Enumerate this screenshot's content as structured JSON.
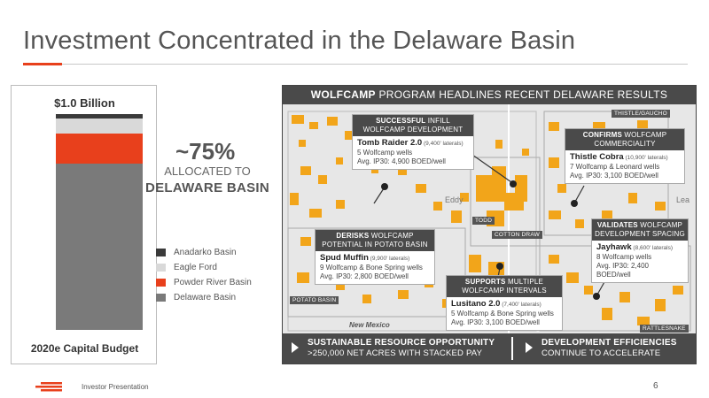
{
  "title": "Investment Concentrated in the Delaware Basin",
  "budget": {
    "total_label": "$1.0 Billion",
    "caption": "2020e Capital Budget",
    "allocation": [
      {
        "name": "Anadarko Basin",
        "share": 0.02,
        "color": "#3a3a3a"
      },
      {
        "name": "Eagle Ford",
        "share": 0.07,
        "color": "#d9d9d9"
      },
      {
        "name": "Powder River Basin",
        "share": 0.14,
        "color": "#e8401c"
      },
      {
        "name": "Delaware Basin",
        "share": 0.77,
        "color": "#7a7a7a"
      }
    ],
    "percent": "~75%",
    "percent_line1": "ALLOCATED TO",
    "percent_line2": "DELAWARE BASIN"
  },
  "legend": [
    "Anadarko Basin",
    "Eagle Ford",
    "Powder River Basin",
    "Delaware Basin"
  ],
  "map": {
    "header_bold": "WOLFCAMP",
    "header_rest": " PROGRAM HEADLINES RECENT DELAWARE RESULTS",
    "area_labels": {
      "thistle": "THISTLE/GAUCHO",
      "todd": "TODD",
      "cotton": "COTTON DRAW",
      "potato": "POTATO BASIN",
      "rattle": "RATTLESNAKE"
    },
    "county_labels": {
      "eddy": "Eddy",
      "lea": "Lea",
      "nm": "New Mexico"
    },
    "callouts": {
      "tomb": {
        "head1": "SUCCESSFUL",
        "head2": " INFILL",
        "head3": "WOLFCAMP DEVELOPMENT",
        "name": "Tomb Raider 2.0",
        "lateral": " (9,400' laterals)",
        "line1": "5 Wolfcamp wells",
        "line2": "Avg. IP30: 4,900 BOED/well"
      },
      "thistle": {
        "head1": "CONFIRMS",
        "head2": " WOLFCAMP",
        "head3": "COMMERCIALITY",
        "name": "Thistle Cobra",
        "lateral": " (10,900' laterals)",
        "line1": "7 Wolfcamp & Leonard wells",
        "line2": "Avg. IP30: 3,100 BOED/well"
      },
      "spud": {
        "head1": "DERISKS",
        "head2": " WOLFCAMP",
        "head3": "POTENTIAL IN POTATO BASIN",
        "name": "Spud Muffin",
        "lateral": " (9,900' laterals)",
        "line1": "9 Wolfcamp & Bone Spring wells",
        "line2": "Avg. IP30: 2,800 BOED/well"
      },
      "jayhawk": {
        "head1": "VALIDATES",
        "head2": " WOLFCAMP",
        "head3": "DEVELOPMENT SPACING",
        "name": "Jayhawk",
        "lateral": " (8,600' laterals)",
        "line1": "8 Wolfcamp wells",
        "line2": "Avg. IP30: 2,400 BOED/well"
      },
      "lusitano": {
        "head1": "SUPPORTS",
        "head2": " MULTIPLE",
        "head3": "WOLFCAMP INTERVALS",
        "name": "Lusitano 2.0",
        "lateral": " (7,400' laterals)",
        "line1": "5 Wolfcamp & Bone Spring wells",
        "line2": "Avg. IP30: 3,100 BOED/well"
      }
    },
    "footer": {
      "left_head": "SUSTAINABLE RESOURCE OPPORTUNITY",
      "left_sub": ">250,000 NET ACRES WITH STACKED PAY",
      "right_head": "DEVELOPMENT EFFICIENCIES",
      "right_sub": "CONTINUE TO ACCELERATE"
    }
  },
  "footer": {
    "text": "Investor Presentation",
    "page": "6"
  },
  "colors": {
    "accent": "#e8401c",
    "acreage": "#f2a51a",
    "dark": "#4a4a4a"
  }
}
